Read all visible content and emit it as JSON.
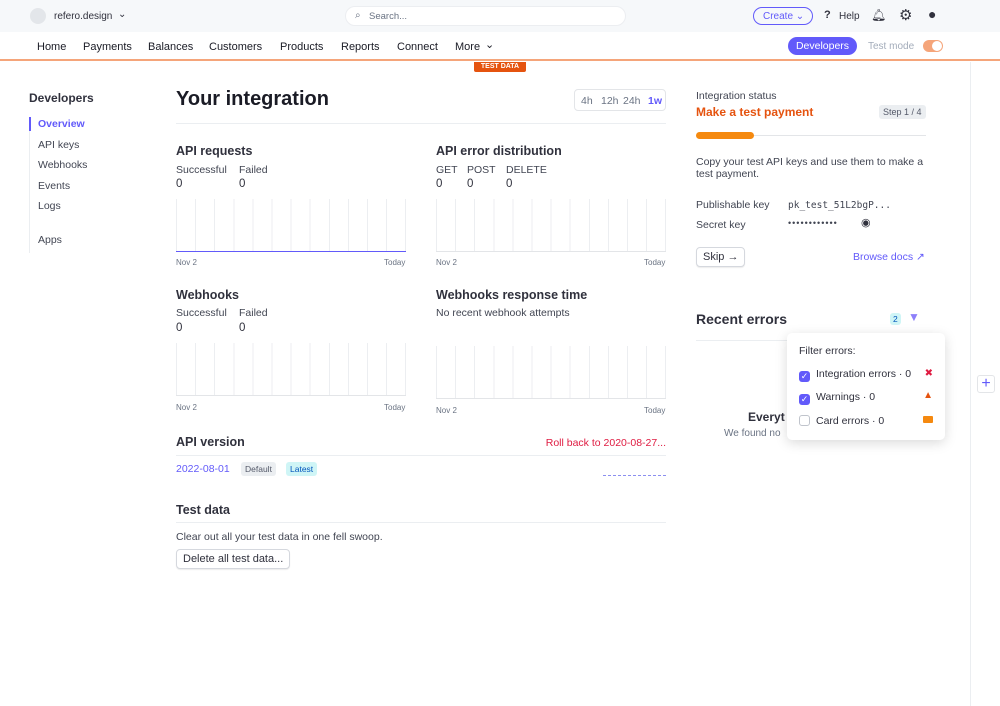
{
  "topbar": {
    "account": "refero.design",
    "search_placeholder": "Search...",
    "create": "Create",
    "help": "Help"
  },
  "nav": {
    "items": [
      "Home",
      "Payments",
      "Balances",
      "Customers",
      "Products",
      "Reports",
      "Connect",
      "More"
    ],
    "developers": "Developers",
    "test_mode": "Test mode",
    "test_data_badge": "TEST DATA"
  },
  "sidebar": {
    "title": "Developers",
    "items": [
      "Overview",
      "API keys",
      "Webhooks",
      "Events",
      "Logs",
      "Apps"
    ],
    "active": "Overview"
  },
  "main": {
    "title": "Your integration",
    "ranges": [
      "4h",
      "12h",
      "24h",
      "1w"
    ],
    "active_range": "1w",
    "api_requests": {
      "title": "API requests",
      "labels": [
        "Successful",
        "Failed"
      ],
      "values": [
        "0",
        "0"
      ],
      "start": "Nov 2",
      "end": "Today"
    },
    "api_errors": {
      "title": "API error distribution",
      "labels": [
        "GET",
        "POST",
        "DELETE"
      ],
      "values": [
        "0",
        "0",
        "0"
      ],
      "start": "Nov 2",
      "end": "Today"
    },
    "webhooks": {
      "title": "Webhooks",
      "labels": [
        "Successful",
        "Failed"
      ],
      "values": [
        "0",
        "0"
      ],
      "start": "Nov 2",
      "end": "Today"
    },
    "webhook_time": {
      "title": "Webhooks response time",
      "empty": "No recent webhook attempts",
      "start": "Nov 2",
      "end": "Today"
    },
    "api_version": {
      "title": "API version",
      "rollback": "Roll back to 2020-08-27...",
      "version": "2022-08-01",
      "default": "Default",
      "latest": "Latest"
    },
    "test_data": {
      "title": "Test data",
      "desc": "Clear out all your test data in one fell swoop.",
      "button": "Delete all test data..."
    }
  },
  "status": {
    "label": "Integration status",
    "title": "Make a test payment",
    "step": "Step 1 / 4",
    "progress": 0.25,
    "desc": "Copy your test API keys and use them to make a test payment.",
    "pk_label": "Publishable key",
    "pk": "pk_test_51L2bgP...",
    "sk_label": "Secret key",
    "sk": "••••••••••••",
    "skip": "Skip",
    "docs": "Browse docs"
  },
  "errors": {
    "title": "Recent errors",
    "count": "2",
    "empty_title": "Everyt",
    "empty_desc": "We found no"
  },
  "filter": {
    "title": "Filter errors:",
    "items": [
      {
        "label": "Integration errors · 0",
        "checked": true
      },
      {
        "label": "Warnings · 0",
        "checked": true
      },
      {
        "label": "Card errors · 0",
        "checked": false
      }
    ]
  },
  "colors": {
    "accent": "#625afa",
    "orange": "#e5530f",
    "danger": "#df1b41"
  }
}
